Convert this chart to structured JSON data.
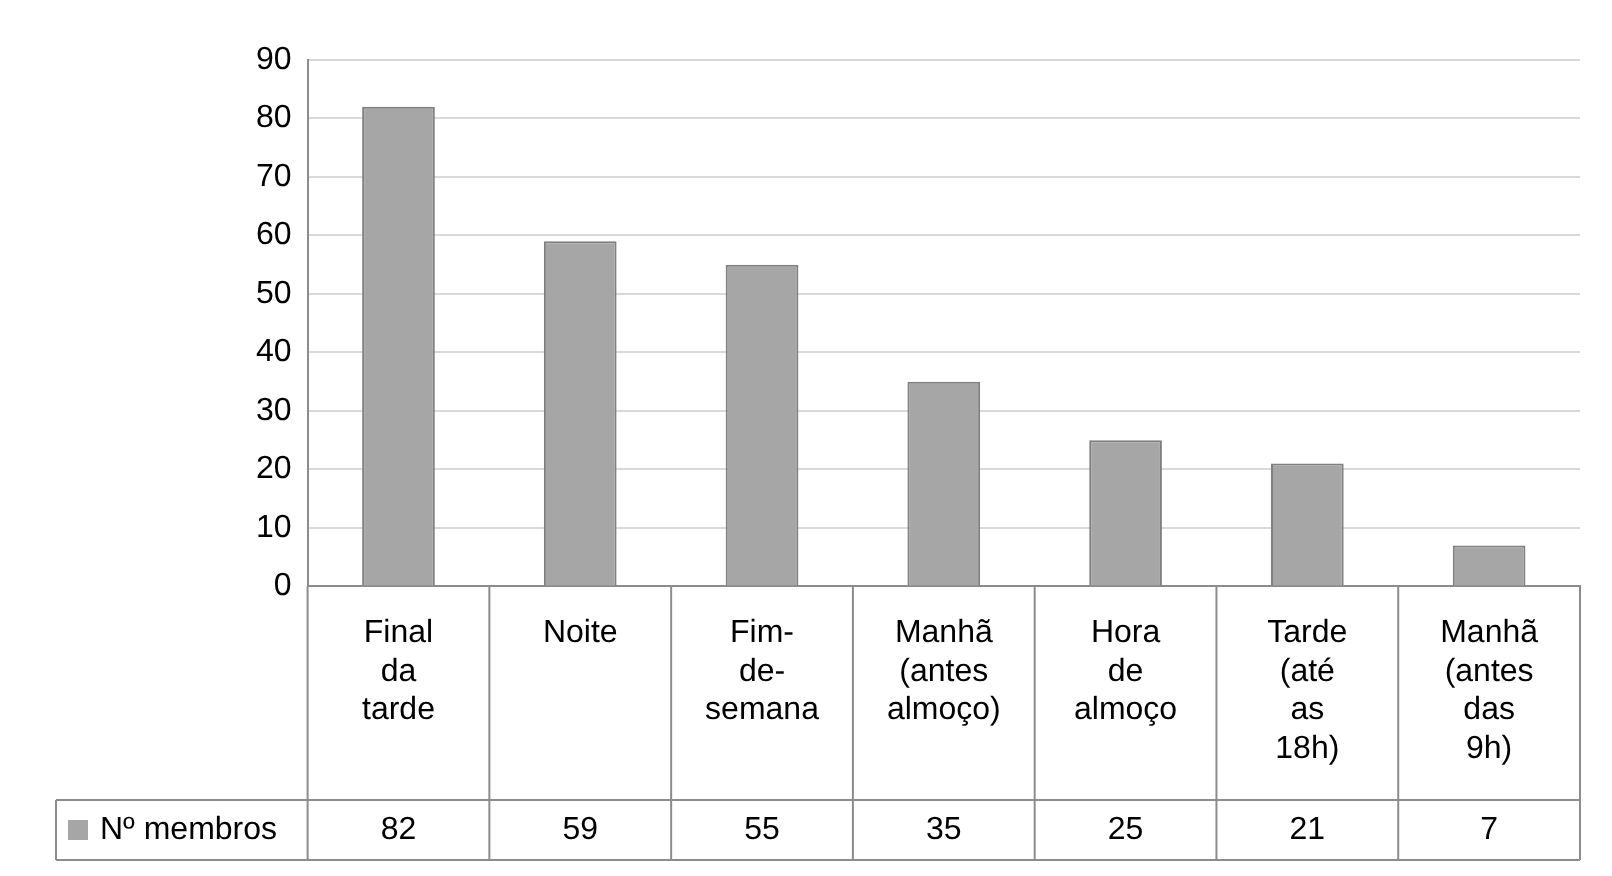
{
  "chart_data": {
    "type": "bar",
    "categories": [
      "Final da tarde",
      "Noite",
      "Fim-de-semana",
      "Manhã (antes almoço)",
      "Hora de almoço",
      "Tarde (até as 18h)",
      "Manhã (antes das 9h)"
    ],
    "series": [
      {
        "name": "Nº membros",
        "color": "#a6a6a6",
        "values": [
          82,
          59,
          55,
          35,
          25,
          21,
          7
        ]
      }
    ],
    "ylim": [
      0,
      90
    ],
    "yticks": [
      0,
      10,
      20,
      30,
      40,
      50,
      60,
      70,
      80,
      90
    ],
    "grid": "y",
    "legend": "bottom left",
    "data_labels": true
  }
}
